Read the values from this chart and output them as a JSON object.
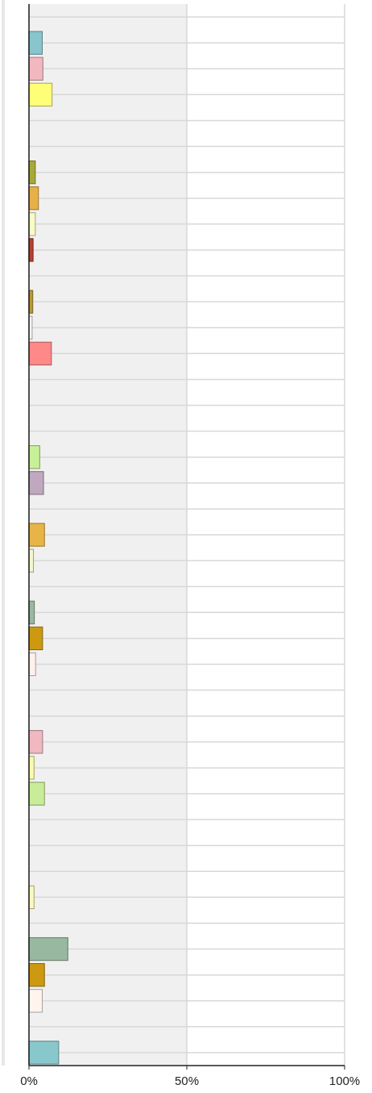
{
  "chart_data": {
    "type": "bar",
    "orientation": "horizontal",
    "categories": [
      null,
      null,
      null,
      null,
      null,
      null,
      null,
      null,
      null,
      null,
      null,
      null,
      null,
      null,
      null,
      null,
      null,
      null,
      null,
      null,
      null,
      null,
      null,
      null,
      null,
      null,
      null,
      null,
      null,
      null,
      null,
      null,
      null,
      null,
      null,
      null,
      null,
      null,
      null,
      null,
      null
    ],
    "values": [
      null,
      4.2,
      4.4,
      7.3,
      null,
      null,
      2.0,
      3.0,
      2.0,
      1.3,
      null,
      1.2,
      1.0,
      7.1,
      null,
      null,
      null,
      3.4,
      4.6,
      null,
      4.9,
      1.4,
      null,
      1.7,
      4.3,
      2.1,
      null,
      null,
      4.3,
      1.6,
      4.9,
      null,
      null,
      null,
      1.6,
      null,
      12.3,
      4.9,
      4.2,
      null,
      9.4
    ],
    "colors": [
      null,
      "#88c5cc",
      "#f2b8c0",
      "#ffff77",
      null,
      null,
      "#a8a838",
      "#e8b048",
      "#fafac8",
      "#b84030",
      null,
      "#b89838",
      "#f4f4f4",
      "#ff8888",
      null,
      null,
      null,
      "#c8f098",
      "#c0a8c0",
      null,
      "#e8b448",
      "#f4f4d0",
      null,
      "#98b8a0",
      "#cc9910",
      "#fff0ec",
      null,
      null,
      "#f0b8c0",
      "#f8f8b0",
      "#c8ec98",
      null,
      null,
      null,
      "#f8f8c0",
      null,
      "#98b8a0",
      "#cc9910",
      "#fff4ee",
      null,
      "#88c8cc"
    ],
    "xlim": [
      0,
      100
    ],
    "xticks": [
      {
        "value": 0,
        "label": "0%"
      },
      {
        "value": 50,
        "label": "50%"
      },
      {
        "value": 100,
        "label": "100%"
      }
    ],
    "grid": true
  }
}
